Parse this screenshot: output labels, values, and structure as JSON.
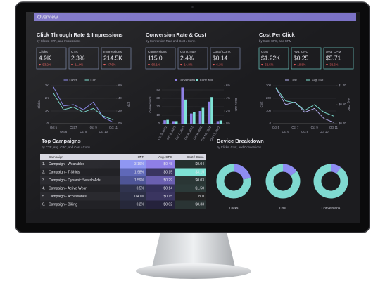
{
  "header": {
    "title": "Overview"
  },
  "sections": [
    {
      "title": "Click Through Rate & Impressions",
      "subtitle": "by Clicks, CTR, and Impressions",
      "kpis": [
        {
          "label": "Clicks",
          "value": "4.9K",
          "change": "-53.2%"
        },
        {
          "label": "CTR",
          "value": "2.3%",
          "change": "-11.9%"
        },
        {
          "label": "Impressions",
          "value": "214.5K",
          "change": "-47.6%"
        }
      ]
    },
    {
      "title": "Conversion Rate & Cost",
      "subtitle": "by Conversion Rate and Cost / Conv.",
      "kpis": [
        {
          "label": "Conversions",
          "value": "115.0",
          "change": "-60.1%"
        },
        {
          "label": "Conv. rate",
          "value": "2.4%",
          "change": "-14.8%"
        },
        {
          "label": "Cost / Conv.",
          "value": "$0.14",
          "change": "-6.1%"
        }
      ]
    },
    {
      "title": "Cost Per Click",
      "subtitle": "by Cost, CPC, and CPM",
      "kpis": [
        {
          "label": "Cost",
          "value": "$1.22K",
          "change": "-62.5%"
        },
        {
          "label": "Avg. CPC",
          "value": "$0.25",
          "change": "-19.8%"
        },
        {
          "label": "Avg. CPM",
          "value": "$5.71",
          "change": "-32.6%"
        }
      ]
    }
  ],
  "chart_data": [
    {
      "type": "line",
      "ylabel": "Clicks",
      "y2label": "CTR",
      "categories": [
        "Oct 5",
        "Oct 6",
        "Oct 7",
        "Oct 8",
        "Oct 9",
        "Oct 10",
        "Oct 11"
      ],
      "series": [
        {
          "name": "Clicks",
          "color": "#8e8cf2",
          "values": [
            2900,
            1400,
            1500,
            1100,
            1700,
            500,
            100
          ]
        },
        {
          "name": "CTR",
          "color": "#7fe3d6",
          "axis": "y2",
          "values": [
            4.8,
            2.2,
            2.6,
            1.8,
            2.4,
            1.2,
            0.6
          ]
        }
      ],
      "ylim": [
        0,
        3000
      ],
      "yticks": [
        0,
        {
          "value": 1000,
          "label": "1K"
        },
        {
          "value": 2000,
          "label": "2K"
        },
        {
          "value": 3000,
          "label": "3K"
        }
      ],
      "y2lim": [
        0,
        6
      ],
      "y2ticks": [
        {
          "value": 0,
          "label": "0%"
        },
        {
          "value": 2,
          "label": "2%"
        },
        {
          "value": 4,
          "label": "4%"
        },
        {
          "value": 6,
          "label": "6%"
        }
      ]
    },
    {
      "type": "bar",
      "ylabel": "Conversions",
      "y2label": "Conv. rate",
      "categories": [
        "Oct 5, 2021",
        "Oct 6, 2021",
        "Oct 7, 2021",
        "Oct 8, 2021",
        "Oct 9, 2021",
        "Oct 10, 2021",
        "Oct 11, 2021"
      ],
      "series": [
        {
          "name": "Conversions",
          "color": "#8e7fe6",
          "values": [
            4,
            3,
            43,
            12,
            15,
            26,
            3
          ]
        },
        {
          "name": "Conv. rate",
          "color": "#7fe3d6",
          "axis": "y2",
          "values": [
            0.6,
            0.4,
            3.8,
            1.8,
            2.5,
            4.2,
            0.5
          ]
        }
      ],
      "ylim": [
        0,
        45
      ],
      "yticks": [
        0,
        10,
        20,
        30,
        40
      ],
      "y2lim": [
        0,
        6
      ],
      "y2ticks": [
        {
          "value": 0,
          "label": "0%"
        },
        {
          "value": 2,
          "label": "2%"
        },
        {
          "value": 4,
          "label": "4%"
        },
        {
          "value": 6,
          "label": "6%"
        }
      ]
    },
    {
      "type": "line",
      "ylabel": "Cost",
      "y2label": "Avg. CPC",
      "categories": [
        "Oct 5",
        "Oct 6",
        "Oct 7",
        "Oct 8",
        "Oct 9",
        "Oct 10",
        "Oct 11"
      ],
      "series": [
        {
          "name": "Cost",
          "color": "#b9b3f5",
          "values": [
            280,
            150,
            170,
            90,
            120,
            40,
            10
          ]
        },
        {
          "name": "Avg. CPC",
          "color": "#7fe3d6",
          "axis": "y2",
          "values": [
            0.95,
            0.6,
            0.55,
            0.35,
            0.5,
            0.3,
            0.2
          ]
        }
      ],
      "ylim": [
        0,
        300
      ],
      "yticks": [
        0,
        100,
        200,
        300
      ],
      "y2lim": [
        0,
        1
      ],
      "y2ticks": [
        {
          "value": 0,
          "label": "$0.00"
        },
        {
          "value": 0.5,
          "label": "$0.50"
        },
        {
          "value": 1,
          "label": "$1.00"
        }
      ]
    },
    {
      "type": "pie",
      "title": "Clicks",
      "values": [
        22,
        78
      ],
      "colors": [
        "#8e8cf2",
        "#7fd9d0"
      ]
    },
    {
      "type": "pie",
      "title": "Cost",
      "values": [
        15,
        85
      ],
      "colors": [
        "#8e8cf2",
        "#7fd9d0"
      ]
    },
    {
      "type": "pie",
      "title": "Conversions",
      "values": [
        10,
        90
      ],
      "colors": [
        "#8e8cf2",
        "#7fd9d0"
      ]
    }
  ],
  "table": {
    "title": "Top Campaigns",
    "subtitle": "by CTR, Avg. CPC, and Cost / Conv.",
    "columns": [
      "Campaign",
      "CTR",
      "Avg. CPC",
      "Cost / Conv."
    ],
    "rows": [
      [
        "1.",
        "Campaign - Wearables",
        "3.16%",
        "$0.48",
        "$0.04"
      ],
      [
        "2.",
        "Campaign - T-Shirts",
        "1.98%",
        "$0.15",
        "$3.15"
      ],
      [
        "3.",
        "Campaign - Dynamic Search Ads",
        "1.59%",
        "$0.29",
        "$0.03"
      ],
      [
        "4.",
        "Campaign - Active Wear",
        "0.5%",
        "$0.14",
        "$1.50"
      ],
      [
        "5.",
        "Campaign - Accessories",
        "0.41%",
        "$0.15",
        "null"
      ],
      [
        "6.",
        "Campaign - Biking",
        "0.2%",
        "$0.02",
        "$0.33"
      ]
    ]
  },
  "device": {
    "title": "Device Breakdown",
    "subtitle": "by Clicks, Cost, and Conversions"
  }
}
